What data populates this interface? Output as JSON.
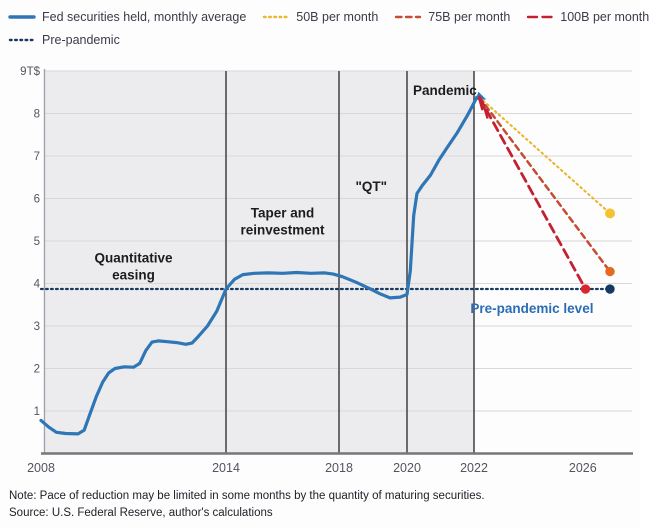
{
  "legend": {
    "items": [
      {
        "label": "Fed securities held, monthly average",
        "style": "solid",
        "color_key": "fed"
      },
      {
        "label": "50B per month",
        "style": "dotted",
        "color_key": "p50"
      },
      {
        "label": "75B per month",
        "style": "dashed-short",
        "color_key": "p75"
      },
      {
        "label": "100B per month",
        "style": "dashed-long",
        "color_key": "p100"
      },
      {
        "label": "Pre-pandemic",
        "style": "dotted",
        "color_key": "prepandemic"
      }
    ]
  },
  "colors": {
    "fed": "#2e76b5",
    "p50": "#e9b62c",
    "p50_dot": "#f2c434",
    "p75": "#c74b32",
    "p75_dot": "#e46a1e",
    "p100": "#c32030",
    "p100_dot": "#d8252e",
    "prepandemic": "#17395f",
    "band": "#ececef",
    "grid": "#d7d7dc",
    "divider": "#4b4b4b",
    "axis_bottom": "#767678",
    "axis_left": "#a0a0a8",
    "tick_text": "#54545f",
    "annotation_text": "#1c1c1c",
    "prepandemic_label": "#2a6cb5"
  },
  "chart_data": {
    "type": "line",
    "title": "",
    "xlabel": "",
    "ylabel": "",
    "ylim": [
      0,
      9
    ],
    "y_ticks": [
      1,
      2,
      3,
      4,
      5,
      6,
      7,
      8,
      9
    ],
    "y_tick_labels": [
      "1",
      "2",
      "3",
      "4",
      "5",
      "6",
      "7",
      "8",
      "9T$"
    ],
    "x_ticks": [
      2008,
      2014,
      2018,
      2020,
      2022,
      2026
    ],
    "x_tick_labels": [
      "2008",
      "2014",
      "2018",
      "2020",
      "2022",
      "2026"
    ],
    "dividers": [
      2014,
      2018,
      2020,
      2022
    ],
    "shaded_region": {
      "x_from": 2008,
      "x_to": 2022
    },
    "pre_pandemic_level": 3.87,
    "series": [
      {
        "name": "Fed securities held, monthly average",
        "color_key": "fed",
        "points": [
          [
            2008.0,
            0.78
          ],
          [
            2008.25,
            0.62
          ],
          [
            2008.5,
            0.5
          ],
          [
            2008.8,
            0.47
          ],
          [
            2009.2,
            0.46
          ],
          [
            2009.4,
            0.55
          ],
          [
            2009.6,
            0.95
          ],
          [
            2009.8,
            1.35
          ],
          [
            2010.0,
            1.68
          ],
          [
            2010.2,
            1.9
          ],
          [
            2010.4,
            2.0
          ],
          [
            2010.7,
            2.04
          ],
          [
            2011.0,
            2.03
          ],
          [
            2011.2,
            2.12
          ],
          [
            2011.4,
            2.42
          ],
          [
            2011.6,
            2.62
          ],
          [
            2011.8,
            2.65
          ],
          [
            2012.1,
            2.63
          ],
          [
            2012.4,
            2.61
          ],
          [
            2012.7,
            2.57
          ],
          [
            2012.9,
            2.6
          ],
          [
            2013.1,
            2.75
          ],
          [
            2013.4,
            3.0
          ],
          [
            2013.7,
            3.35
          ],
          [
            2014.0,
            3.87
          ],
          [
            2014.3,
            4.1
          ],
          [
            2014.6,
            4.21
          ],
          [
            2015.0,
            4.24
          ],
          [
            2015.5,
            4.25
          ],
          [
            2016.0,
            4.24
          ],
          [
            2016.5,
            4.26
          ],
          [
            2017.0,
            4.24
          ],
          [
            2017.5,
            4.25
          ],
          [
            2017.8,
            4.22
          ],
          [
            2018.1,
            4.16
          ],
          [
            2018.5,
            4.03
          ],
          [
            2018.9,
            3.88
          ],
          [
            2019.2,
            3.76
          ],
          [
            2019.5,
            3.66
          ],
          [
            2019.8,
            3.68
          ],
          [
            2020.0,
            3.74
          ],
          [
            2020.1,
            4.3
          ],
          [
            2020.2,
            5.6
          ],
          [
            2020.3,
            6.12
          ],
          [
            2020.45,
            6.3
          ],
          [
            2020.7,
            6.55
          ],
          [
            2020.95,
            6.9
          ],
          [
            2021.2,
            7.2
          ],
          [
            2021.5,
            7.55
          ],
          [
            2021.8,
            7.95
          ],
          [
            2022.0,
            8.25
          ],
          [
            2022.1,
            8.38
          ],
          [
            2022.2,
            8.4
          ]
        ]
      }
    ],
    "actual_decline_wiggle": {
      "color_key": "p100",
      "points": [
        [
          2022.18,
          8.38
        ],
        [
          2022.3,
          8.1
        ],
        [
          2022.36,
          8.18
        ],
        [
          2022.5,
          7.88
        ]
      ]
    },
    "projections": [
      {
        "name": "50B per month",
        "style": "dotted",
        "color_key": "p50",
        "start": [
          2022.2,
          8.38
        ],
        "end": [
          2027.0,
          5.65
        ]
      },
      {
        "name": "75B per month",
        "style": "dashed-short",
        "color_key": "p75",
        "start": [
          2022.2,
          8.38
        ],
        "end": [
          2027.0,
          4.28
        ]
      },
      {
        "name": "100B per month",
        "style": "dashed-long",
        "color_key": "p100",
        "start": [
          2022.2,
          8.38
        ],
        "end": [
          2026.1,
          3.87
        ]
      }
    ],
    "endpoint_dots": [
      {
        "x": 2027.0,
        "v": 5.65,
        "color_key": "p50_dot",
        "r": 5.0
      },
      {
        "x": 2027.0,
        "v": 4.28,
        "color_key": "p75_dot",
        "r": 4.7
      },
      {
        "x": 2026.1,
        "v": 3.87,
        "color_key": "p100_dot",
        "r": 4.7
      },
      {
        "x": 2027.0,
        "v": 3.87,
        "color_key": "prepandemic",
        "r": 4.7
      }
    ],
    "annotations": [
      {
        "lines": [
          "Quantitative",
          "easing"
        ],
        "x": 2011.0,
        "v": 4.49,
        "color_key": "annotation_text"
      },
      {
        "lines": [
          "Taper and",
          "reinvestment"
        ],
        "x": 2016.0,
        "v": 5.55,
        "color_key": "annotation_text"
      },
      {
        "lines": [
          "\"QT\""
        ],
        "x": 2018.95,
        "v": 6.18,
        "color_key": "annotation_text"
      },
      {
        "lines": [
          "Pandemic"
        ],
        "x": 2021.13,
        "v": 8.44,
        "color_key": "annotation_text"
      },
      {
        "lines": [
          "Pre-pandemic level"
        ],
        "x": 2024.13,
        "v": 3.31,
        "color_key": "prepandemic_label"
      }
    ]
  },
  "footer": {
    "note": "Note: Pace of reduction may be limited in some months by the quantity of maturing securities.",
    "source": "Source: U.S. Federal Reserve, author's calculations"
  }
}
